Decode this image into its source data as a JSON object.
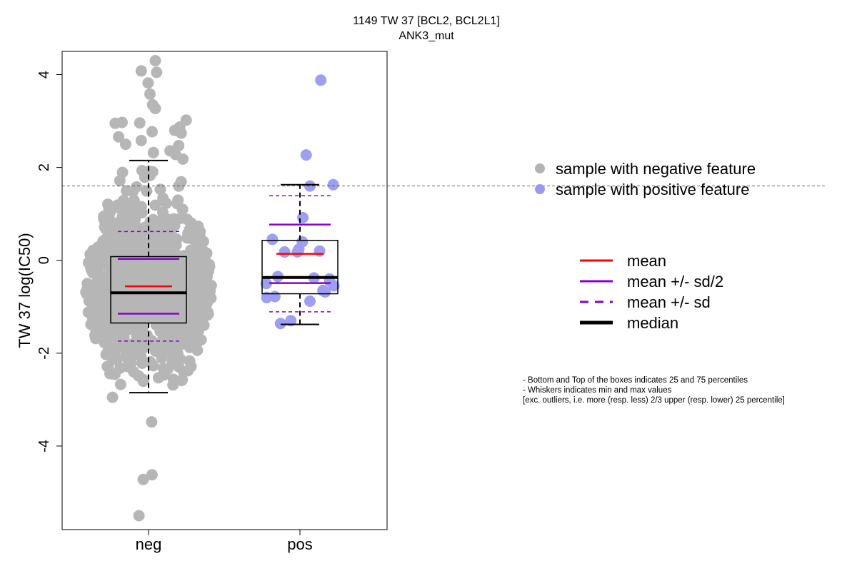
{
  "chart_data": {
    "type": "box",
    "title": "1149 TW 37 [BCL2, BCL2L1]",
    "subtitle": "ANK3_mut",
    "ylabel": "TW 37 log(IC50)",
    "xlabel": "",
    "categories": [
      "neg",
      "pos"
    ],
    "ylim": [
      -5.8,
      4.5
    ],
    "y_ticks": [
      4,
      2,
      0,
      -2,
      -4
    ],
    "threshold_line": 1.6,
    "grid": false,
    "colors": {
      "neg": "#b3b3b3",
      "pos": "#9999f2",
      "mean": "#ff0000",
      "sd": "#8800cc",
      "median": "#000000"
    },
    "groups": [
      {
        "name": "neg",
        "q1": -1.35,
        "median": -0.7,
        "q3": 0.08,
        "whisker_low": -2.85,
        "whisker_high": 2.15,
        "mean": -0.56,
        "mean_minus_half_sd": -1.15,
        "mean_plus_half_sd": 0.03,
        "mean_minus_sd": -1.74,
        "mean_plus_sd": 0.62,
        "outliers": [
          4.3,
          4.08,
          4.05,
          3.82,
          3.58,
          3.35,
          3.27,
          3.02,
          2.95,
          2.96,
          2.97,
          2.87,
          2.8,
          2.77,
          2.74,
          2.66,
          2.58,
          2.5,
          2.47,
          2.36,
          2.32,
          2.28,
          2.18,
          -2.95,
          -3.48,
          -4.62,
          -4.72,
          -5.5
        ]
      },
      {
        "name": "pos",
        "q1": -0.72,
        "median": -0.37,
        "q3": 0.43,
        "whisker_low": -1.38,
        "whisker_high": 1.63,
        "mean": 0.14,
        "mean_minus_half_sd": -0.49,
        "mean_plus_half_sd": 0.77,
        "mean_minus_sd": -1.11,
        "mean_plus_sd": 1.39,
        "points": [
          3.88,
          2.27,
          1.63,
          1.6,
          0.92,
          0.45,
          0.4,
          0.24,
          0.2,
          0.18,
          0.18,
          -0.35,
          -0.38,
          -0.4,
          -0.45,
          -0.5,
          -0.55,
          -0.68,
          -0.65,
          -0.8,
          -0.78,
          -0.88,
          -1.3,
          -1.36
        ]
      }
    ],
    "legend_points": [
      {
        "label": "sample with negative feature",
        "color": "#b3b3b3"
      },
      {
        "label": "sample with positive feature",
        "color": "#9999f2"
      }
    ],
    "legend_lines": [
      {
        "label": "mean",
        "color": "#ff0000",
        "style": "solid",
        "weight": "normal"
      },
      {
        "label": "mean +/- sd/2",
        "color": "#8800cc",
        "style": "solid",
        "weight": "normal"
      },
      {
        "label": "mean +/- sd",
        "color": "#8800cc",
        "style": "dashed",
        "weight": "normal"
      },
      {
        "label": "median",
        "color": "#000000",
        "style": "solid",
        "weight": "bold"
      }
    ],
    "notes": [
      "- Bottom and Top of the boxes indicates 25 and 75 percentiles",
      "- Whiskers indicates min and max values",
      "[exc. outliers, i.e. more (resp. less) 2/3 upper (resp. lower) 25 percentile]"
    ]
  }
}
